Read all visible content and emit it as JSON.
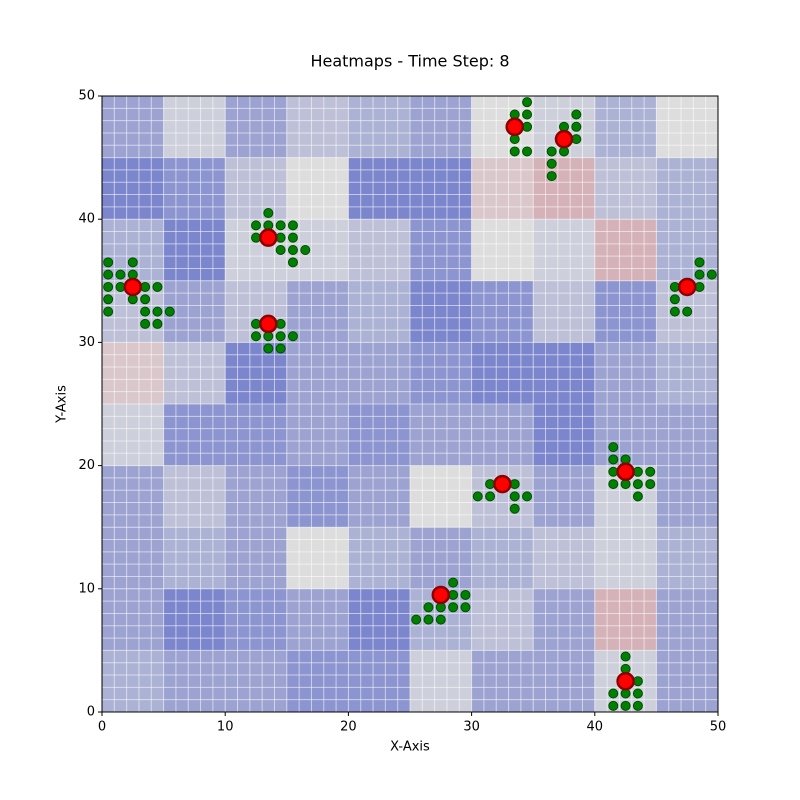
{
  "chart_data": {
    "type": "heatmap",
    "title": "Heatmaps - Time Step: 8",
    "xlabel": "X-Axis",
    "ylabel": "Y-Axis",
    "xlim": [
      0,
      50
    ],
    "ylim": [
      0,
      50
    ],
    "xticks": [
      0,
      10,
      20,
      30,
      40,
      50
    ],
    "yticks": [
      0,
      10,
      20,
      30,
      40,
      50
    ],
    "colormap": [
      "#3b4cc0",
      "#dddddd",
      "#b40426"
    ],
    "vlim": [
      0,
      1
    ],
    "heatmap": {
      "xbins": [
        0,
        5,
        10,
        15,
        20,
        25,
        30,
        35,
        40,
        45,
        50
      ],
      "ybins": [
        0,
        5,
        10,
        15,
        20,
        25,
        30,
        35,
        40,
        45,
        50
      ],
      "values": [
        [
          0.35,
          0.3,
          0.3,
          0.25,
          0.25,
          0.45,
          0.3,
          0.3,
          0.45,
          0.3
        ],
        [
          0.3,
          0.2,
          0.25,
          0.3,
          0.2,
          0.35,
          0.4,
          0.3,
          0.6,
          0.3
        ],
        [
          0.3,
          0.35,
          0.3,
          0.5,
          0.35,
          0.3,
          0.35,
          0.4,
          0.45,
          0.35
        ],
        [
          0.3,
          0.4,
          0.3,
          0.25,
          0.3,
          0.5,
          0.4,
          0.3,
          0.45,
          0.3
        ],
        [
          0.45,
          0.25,
          0.25,
          0.3,
          0.25,
          0.3,
          0.3,
          0.2,
          0.3,
          0.3
        ],
        [
          0.55,
          0.4,
          0.2,
          0.3,
          0.3,
          0.25,
          0.2,
          0.2,
          0.3,
          0.35
        ],
        [
          0.4,
          0.3,
          0.4,
          0.3,
          0.35,
          0.2,
          0.25,
          0.4,
          0.25,
          0.4
        ],
        [
          0.35,
          0.2,
          0.45,
          0.45,
          0.4,
          0.25,
          0.5,
          0.45,
          0.6,
          0.35
        ],
        [
          0.2,
          0.25,
          0.4,
          0.5,
          0.2,
          0.2,
          0.55,
          0.6,
          0.4,
          0.35
        ],
        [
          0.3,
          0.45,
          0.3,
          0.4,
          0.35,
          0.3,
          0.5,
          0.45,
          0.35,
          0.5
        ]
      ]
    },
    "series": [
      {
        "color": "#008000",
        "edgecolor": "#004d00",
        "size": 4.5,
        "x": [
          0.5,
          0.5,
          0.5,
          0.5,
          0.5,
          1.5,
          1.5,
          2.5,
          2.5,
          2.5,
          3.5,
          3.5,
          3.5,
          3.5,
          4.5,
          4.5,
          4.5,
          5.5,
          12.5,
          12.5,
          13.5,
          13.5,
          14.5,
          14.5,
          14.5,
          15.5,
          15.5,
          15.5,
          15.5,
          16.5,
          12.5,
          12.5,
          13.5,
          13.5,
          14.5,
          14.5,
          14.5,
          15.5,
          34.5,
          33.5,
          34.5,
          34.5,
          33.5,
          33.5,
          34.5,
          38.5,
          38.5,
          38.5,
          37.5,
          36.5,
          37.5,
          36.5,
          36.5,
          46.5,
          46.5,
          46.5,
          47.5,
          48.5,
          48.5,
          48.5,
          49.5,
          30.5,
          31.5,
          31.5,
          33.5,
          33.5,
          34.5,
          33.5,
          41.5,
          41.5,
          41.5,
          41.5,
          42.5,
          42.5,
          43.5,
          43.5,
          43.5,
          44.5,
          44.5,
          28.5,
          28.5,
          28.5,
          29.5,
          29.5,
          26.5,
          27.5,
          25.5,
          26.5,
          27.5,
          42.5,
          42.5,
          43.5,
          41.5,
          42.5,
          43.5,
          41.5,
          42.5,
          43.5
        ],
        "y": [
          36.5,
          35.5,
          34.5,
          33.5,
          32.5,
          35.5,
          34.5,
          36.5,
          35.5,
          33.5,
          34.5,
          33.5,
          32.5,
          31.5,
          34.5,
          32.5,
          31.5,
          32.5,
          39.5,
          38.5,
          40.5,
          39.5,
          39.5,
          38.5,
          37.5,
          39.5,
          38.5,
          37.5,
          36.5,
          37.5,
          31.5,
          30.5,
          30.5,
          29.5,
          31.5,
          30.5,
          29.5,
          30.5,
          49.5,
          48.5,
          48.5,
          47.5,
          46.5,
          45.5,
          45.5,
          48.5,
          47.5,
          46.5,
          47.5,
          45.5,
          45.5,
          44.5,
          43.5,
          34.5,
          33.5,
          32.5,
          32.5,
          36.5,
          35.5,
          34.5,
          35.5,
          17.5,
          18.5,
          17.5,
          18.5,
          17.5,
          17.5,
          16.5,
          21.5,
          20.5,
          19.5,
          18.5,
          20.5,
          18.5,
          19.5,
          18.5,
          17.5,
          19.5,
          18.5,
          10.5,
          9.5,
          8.5,
          9.5,
          8.5,
          8.5,
          8.5,
          7.5,
          7.5,
          7.5,
          4.5,
          3.5,
          2.5,
          1.5,
          1.5,
          1.5,
          0.5,
          0.5,
          0.5
        ]
      },
      {
        "color": "#ff0000",
        "edgecolor": "#8b0000",
        "size": 8,
        "x": [
          2.5,
          13.5,
          13.5,
          33.5,
          37.5,
          47.5,
          32.5,
          42.5,
          27.5,
          42.5
        ],
        "y": [
          34.5,
          38.5,
          31.5,
          47.5,
          46.5,
          34.5,
          18.5,
          19.5,
          9.5,
          2.5
        ]
      }
    ]
  }
}
